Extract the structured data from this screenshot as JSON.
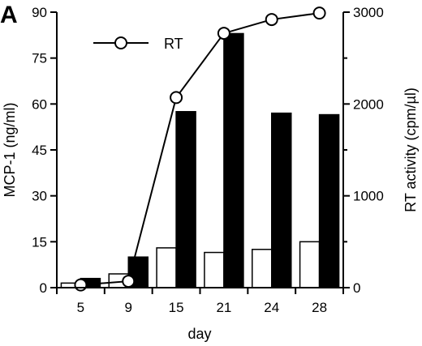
{
  "panel_label": "A",
  "chart_data": {
    "type": "bar",
    "xlabel": "day",
    "categories": [
      "5",
      "9",
      "15",
      "21",
      "24",
      "28"
    ],
    "y_left": {
      "label": "MCP-1 (ng/ml)",
      "lim": [
        0,
        90
      ],
      "ticks": [
        0,
        15,
        30,
        45,
        60,
        75,
        90
      ]
    },
    "y_right": {
      "label": "RT activity (cpm/µl)",
      "lim": [
        0,
        3000
      ],
      "ticks": [
        0,
        1000,
        2000,
        3000
      ]
    },
    "series": [
      {
        "kind": "bar",
        "fill": "white",
        "values": [
          1.5,
          4.5,
          13,
          11.5,
          12.5,
          15
        ]
      },
      {
        "kind": "bar",
        "fill": "black",
        "values": [
          3,
          10,
          57.5,
          83,
          57,
          56.5
        ]
      },
      {
        "name": "RT",
        "kind": "line",
        "marker": "open-circle",
        "axis": "right",
        "values": [
          30,
          70,
          2070,
          2770,
          2920,
          2990
        ]
      }
    ],
    "legend": {
      "position": "top-left",
      "entries": [
        "RT"
      ]
    },
    "colors": {
      "white_bar": "#ffffff",
      "black_bar": "#000000",
      "line": "#000000"
    },
    "grid": false
  }
}
